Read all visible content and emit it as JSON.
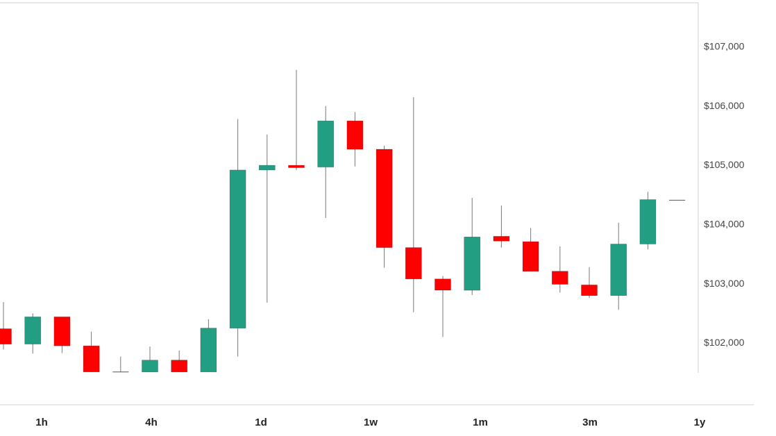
{
  "chart_data": {
    "type": "candlestick",
    "ylim": [
      101500,
      107700
    ],
    "y_ticks": [
      {
        "value": 102000,
        "label": "$102,000"
      },
      {
        "value": 103000,
        "label": "$103,000"
      },
      {
        "value": 104000,
        "label": "$104,000"
      },
      {
        "value": 105000,
        "label": "$105,000"
      },
      {
        "value": 106000,
        "label": "$106,000"
      },
      {
        "value": 107000,
        "label": "$107,000"
      }
    ],
    "colors": {
      "up": "#229e82",
      "down": "#ff0000",
      "wick": "#777777"
    },
    "candles": [
      {
        "open": 102230,
        "high": 102680,
        "low": 101880,
        "close": 101970
      },
      {
        "open": 101970,
        "high": 102490,
        "low": 101810,
        "close": 102430
      },
      {
        "open": 102430,
        "high": 102430,
        "low": 101820,
        "close": 101940
      },
      {
        "open": 101940,
        "high": 102180,
        "low": 101500,
        "close": 101500
      },
      {
        "open": 101500,
        "high": 101760,
        "low": 101500,
        "close": 101500
      },
      {
        "open": 101500,
        "high": 101930,
        "low": 101500,
        "close": 101700
      },
      {
        "open": 101700,
        "high": 101860,
        "low": 101500,
        "close": 101500
      },
      {
        "open": 101500,
        "high": 102390,
        "low": 101500,
        "close": 102240
      },
      {
        "open": 102240,
        "high": 105770,
        "low": 101760,
        "close": 104910
      },
      {
        "open": 104910,
        "high": 105510,
        "low": 102670,
        "close": 104990
      },
      {
        "open": 104990,
        "high": 106600,
        "low": 104910,
        "close": 104950
      },
      {
        "open": 104960,
        "high": 105990,
        "low": 104100,
        "close": 105740
      },
      {
        "open": 105740,
        "high": 105890,
        "low": 104970,
        "close": 105260
      },
      {
        "open": 105260,
        "high": 105320,
        "low": 103260,
        "close": 103600
      },
      {
        "open": 103600,
        "high": 106140,
        "low": 102510,
        "close": 103070
      },
      {
        "open": 103070,
        "high": 103120,
        "low": 102090,
        "close": 102880
      },
      {
        "open": 102880,
        "high": 104440,
        "low": 102800,
        "close": 103780
      },
      {
        "open": 103790,
        "high": 104310,
        "low": 103600,
        "close": 103710
      },
      {
        "open": 103700,
        "high": 103930,
        "low": 103200,
        "close": 103200
      },
      {
        "open": 103200,
        "high": 103620,
        "low": 102840,
        "close": 102980
      },
      {
        "open": 102970,
        "high": 103270,
        "low": 102750,
        "close": 102790
      },
      {
        "open": 102790,
        "high": 104020,
        "low": 102550,
        "close": 103660
      },
      {
        "open": 103660,
        "high": 104540,
        "low": 103570,
        "close": 104410
      },
      {
        "open": 104400,
        "high": 104400,
        "low": 104400,
        "close": 104400
      }
    ]
  },
  "range_tabs": [
    "1h",
    "4h",
    "1d",
    "1w",
    "1m",
    "3m",
    "1y"
  ]
}
